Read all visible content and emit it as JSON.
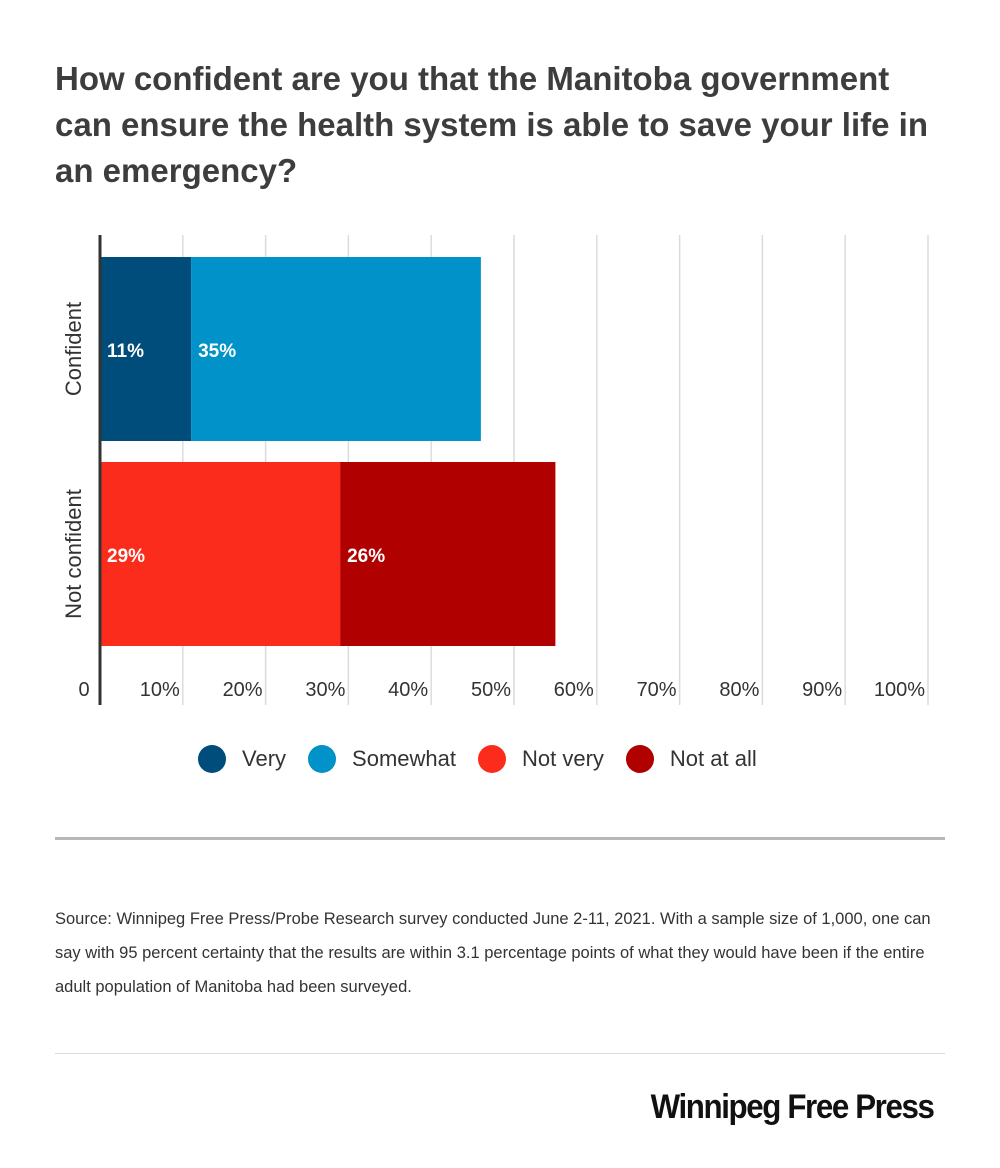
{
  "chart_data": {
    "type": "bar",
    "orientation": "horizontal",
    "stacked": true,
    "title": "How confident are you that the Manitoba government can ensure the health system is able to save your life in an emergency?",
    "categories": [
      "Confident",
      "Not confident"
    ],
    "series": [
      {
        "name": "Very",
        "color": "#004c7a",
        "values": [
          11,
          null
        ]
      },
      {
        "name": "Somewhat",
        "color": "#0092c8",
        "values": [
          35,
          null
        ]
      },
      {
        "name": "Not very",
        "color": "#fb2c1c",
        "values": [
          null,
          29
        ]
      },
      {
        "name": "Not at all",
        "color": "#b00000",
        "values": [
          null,
          26
        ]
      }
    ],
    "data_labels": [
      {
        "series": "Very",
        "category": "Confident",
        "label": "11%"
      },
      {
        "series": "Somewhat",
        "category": "Confident",
        "label": "35%"
      },
      {
        "series": "Not very",
        "category": "Not confident",
        "label": "29%"
      },
      {
        "series": "Not at all",
        "category": "Not confident",
        "label": "26%"
      }
    ],
    "xlim": [
      0,
      100
    ],
    "x_ticks": [
      0,
      10,
      20,
      30,
      40,
      50,
      60,
      70,
      80,
      90,
      100
    ],
    "x_tick_labels": [
      "0",
      "10%",
      "20%",
      "30%",
      "40%",
      "50%",
      "60%",
      "70%",
      "80%",
      "90%",
      "100%"
    ],
    "grid": true,
    "legend_position": "bottom"
  },
  "footer": {
    "source": "Source: Winnipeg Free Press/Probe Research survey conducted June 2-11, 2021. With a sample size of 1,000, one can say with 95 percent certainty that the results are within 3.1 percentage points of what they would have been if the entire adult population of Manitoba had been surveyed.",
    "logo": "Winnipeg Free Press"
  }
}
